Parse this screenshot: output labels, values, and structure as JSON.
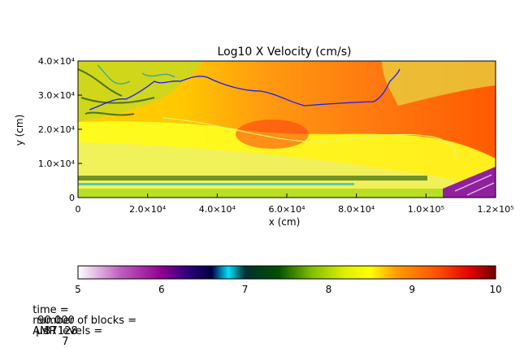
{
  "chart_data": {
    "type": "heatmap",
    "title": "Log10 X Velocity (cm/s)",
    "xlabel": "x (cm)",
    "ylabel": "y (cm)",
    "xlim": [
      0,
      120000
    ],
    "ylim": [
      0,
      40000
    ],
    "x_ticks": [
      {
        "value": 0,
        "label": "0"
      },
      {
        "value": 20000,
        "label": "2.0×10⁴"
      },
      {
        "value": 40000,
        "label": "4.0×10⁴"
      },
      {
        "value": 60000,
        "label": "6.0×10⁴"
      },
      {
        "value": 80000,
        "label": "8.0×10⁴"
      },
      {
        "value": 100000,
        "label": "1.0×10⁵"
      },
      {
        "value": 120000,
        "label": "1.2×10⁵"
      }
    ],
    "y_ticks": [
      {
        "value": 0,
        "label": "0"
      },
      {
        "value": 10000,
        "label": "1.0×10⁴"
      },
      {
        "value": 20000,
        "label": "2.0×10⁴"
      },
      {
        "value": 30000,
        "label": "3.0×10⁴"
      },
      {
        "value": 40000,
        "label": "4.0×10⁴"
      }
    ],
    "colorbar": {
      "range": [
        5,
        10
      ],
      "ticks": [
        "5",
        "6",
        "7",
        "8",
        "9",
        "10"
      ],
      "colors": [
        {
          "v": 5.0,
          "c": "#ffffff"
        },
        {
          "v": 5.5,
          "c": "#c060c0"
        },
        {
          "v": 6.0,
          "c": "#900090"
        },
        {
          "v": 6.3,
          "c": "#300080"
        },
        {
          "v": 6.6,
          "c": "#000040"
        },
        {
          "v": 6.8,
          "c": "#00e0ff"
        },
        {
          "v": 7.0,
          "c": "#003030"
        },
        {
          "v": 7.4,
          "c": "#005000"
        },
        {
          "v": 7.8,
          "c": "#80c000"
        },
        {
          "v": 8.2,
          "c": "#e0f000"
        },
        {
          "v": 8.5,
          "c": "#ffff00"
        },
        {
          "v": 8.8,
          "c": "#ffa000"
        },
        {
          "v": 9.3,
          "c": "#ff5000"
        },
        {
          "v": 9.7,
          "c": "#e00000"
        },
        {
          "v": 10.0,
          "c": "#700000"
        }
      ]
    },
    "contour_color": "#1a1aff"
  },
  "info": {
    "time_label": "time =",
    "time_value": "90.000",
    "time_unit": "μs",
    "blocks_label": "number of blocks =",
    "blocks_value": "37128",
    "amr_label": "AMR levels =",
    "amr_value": "7"
  }
}
